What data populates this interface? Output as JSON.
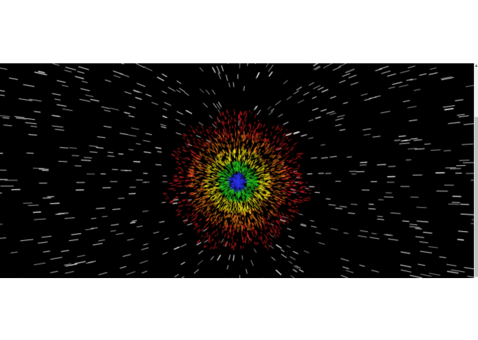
{
  "viewport": {
    "background": "#000000",
    "star_color": "#ffffff"
  },
  "burst": {
    "rings": [
      {
        "name": "red",
        "color": "#d81e1e"
      },
      {
        "name": "orange",
        "color": "#f07a1a"
      },
      {
        "name": "yellow",
        "color": "#f2e21a"
      },
      {
        "name": "green",
        "color": "#27c21f"
      },
      {
        "name": "blue",
        "color": "#2830e6"
      }
    ]
  },
  "scrollbar": {
    "up_icon": "triangle-up-icon"
  }
}
